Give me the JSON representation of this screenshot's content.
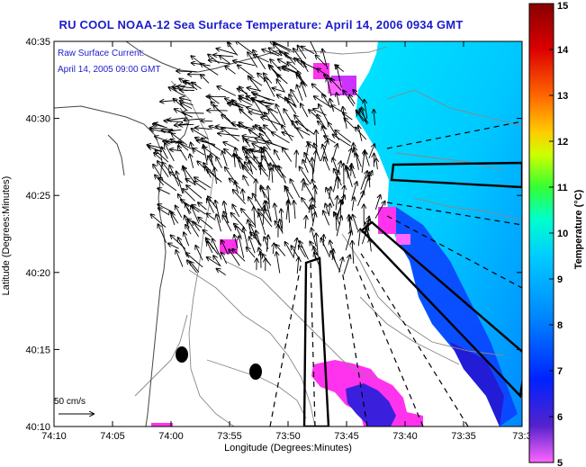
{
  "title": "RU COOL  NOAA-12  Sea Surface Temperature:  April 14, 2006 0934 GMT",
  "annotation": {
    "line1": "Raw Surface Current:",
    "line2": "April 14, 2005 09:00 GMT"
  },
  "scale": {
    "label": "50 cm/s"
  },
  "axes": {
    "xlabel": "Longitude (Degrees:Minutes)",
    "ylabel": "Latitude (Degrees:Minutes)",
    "xticks": [
      "74:10",
      "74:05",
      "74:00",
      "73:55",
      "73:50",
      "73:45",
      "73:40",
      "73:35",
      "73:3"
    ],
    "yticks": [
      "40:35",
      "40:30",
      "40:25",
      "40:20",
      "40:15",
      "40:10"
    ]
  },
  "colorbar": {
    "label": "Temperature (°C)",
    "ticks": [
      "15",
      "14",
      "13",
      "12",
      "11",
      "10",
      "9",
      "8",
      "7",
      "6",
      "5"
    ],
    "colors": [
      "#ff66ff",
      "#5522cc",
      "#0022ff",
      "#0088ff",
      "#00ccff",
      "#00ffcc",
      "#33ff33",
      "#ccff00",
      "#ffcc00",
      "#ff6600",
      "#dd0000",
      "#880000"
    ]
  },
  "chart_data": {
    "type": "map",
    "title": "RU COOL  NOAA-12  Sea Surface Temperature:  April 14, 2006 0934 GMT",
    "xlabel": "Longitude (Degrees:Minutes)",
    "ylabel": "Latitude (Degrees:Minutes)",
    "xlim": [
      "74:10",
      "73:30"
    ],
    "ylim": [
      "40:10",
      "40:35"
    ],
    "colorbar_range": [
      5,
      15
    ],
    "colorbar_unit": "°C",
    "markers": [
      {
        "lon": "74:00",
        "lat": "40:14.5",
        "shape": "filled-ellipse"
      },
      {
        "lon": "73:57",
        "lat": "40:13.5",
        "shape": "filled-ellipse"
      }
    ]
  }
}
